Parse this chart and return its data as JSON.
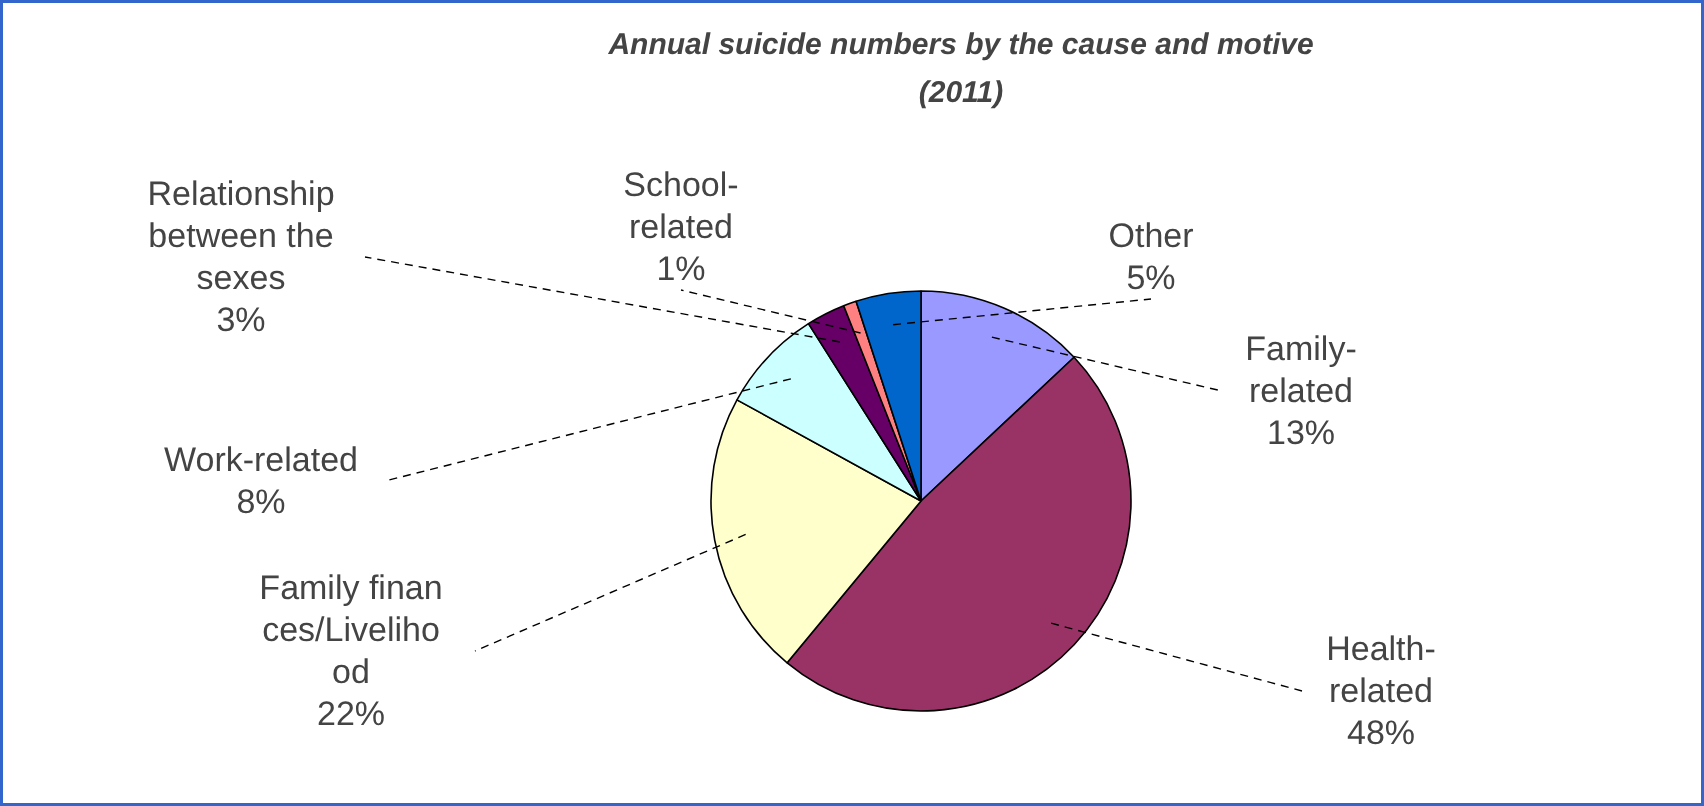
{
  "chart_data": {
    "type": "pie",
    "title": "Annual suicide numbers by the cause and motive (2011)",
    "categories": [
      "Family-related",
      "Health-related",
      "Family finances/Livelihood",
      "Work-related",
      "Relationship between the sexes",
      "School-related",
      "Other"
    ],
    "values": [
      13,
      48,
      22,
      8,
      3,
      1,
      5
    ],
    "value_labels": [
      "13%",
      "48%",
      "22%",
      "8%",
      "3%",
      "1%",
      "5%"
    ],
    "colors": [
      "#9999ff",
      "#993366",
      "#ffffcc",
      "#ccffff",
      "#660066",
      "#ff8080",
      "#0066cc"
    ]
  }
}
